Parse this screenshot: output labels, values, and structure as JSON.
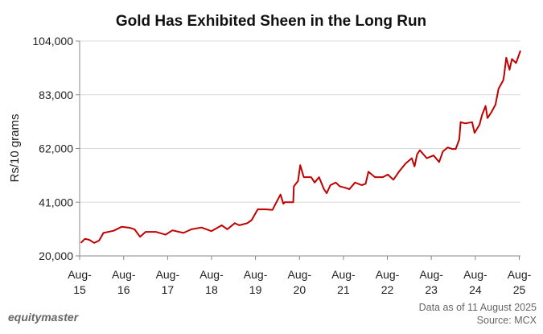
{
  "chart_data": {
    "type": "line",
    "title": "Gold Has Exhibited Sheen in the Long Run",
    "xlabel": "",
    "ylabel": "Rs/10 grams",
    "ylim": [
      20000,
      104000
    ],
    "xlim": [
      "2015-08-01",
      "2025-08-11"
    ],
    "grid": "horizontal",
    "line_color": "#c00000",
    "yticks": [
      20000,
      41000,
      62000,
      83000,
      104000
    ],
    "ytick_labels": [
      "20,000",
      "41,000",
      "62,000",
      "83,000",
      "104,000"
    ],
    "xticks": [
      "2015-08-01",
      "2016-08-01",
      "2017-08-01",
      "2018-08-01",
      "2019-08-01",
      "2020-08-01",
      "2021-08-01",
      "2022-08-01",
      "2023-08-01",
      "2024-08-01",
      "2025-08-01"
    ],
    "xtick_labels": [
      [
        "Aug-",
        "15"
      ],
      [
        "Aug-",
        "16"
      ],
      [
        "Aug-",
        "17"
      ],
      [
        "Aug-",
        "18"
      ],
      [
        "Aug-",
        "19"
      ],
      [
        "Aug-",
        "20"
      ],
      [
        "Aug-",
        "21"
      ],
      [
        "Aug-",
        "22"
      ],
      [
        "Aug-",
        "23"
      ],
      [
        "Aug-",
        "24"
      ],
      [
        "Aug-",
        "25"
      ]
    ],
    "series": [
      {
        "points": [
          [
            "2015-08-11",
            25100
          ],
          [
            "2015-09-15",
            26700
          ],
          [
            "2015-10-20",
            26300
          ],
          [
            "2015-11-30",
            25100
          ],
          [
            "2016-01-10",
            26000
          ],
          [
            "2016-02-15",
            29000
          ],
          [
            "2016-05-10",
            29850
          ],
          [
            "2016-07-15",
            31400
          ],
          [
            "2016-09-20",
            31000
          ],
          [
            "2016-10-30",
            30400
          ],
          [
            "2016-12-15",
            27500
          ],
          [
            "2017-01-30",
            29400
          ],
          [
            "2017-04-25",
            29400
          ],
          [
            "2017-07-15",
            28300
          ],
          [
            "2017-09-10",
            30000
          ],
          [
            "2017-12-10",
            29000
          ],
          [
            "2018-02-15",
            30400
          ],
          [
            "2018-05-10",
            31100
          ],
          [
            "2018-07-30",
            29700
          ],
          [
            "2018-10-25",
            32000
          ],
          [
            "2018-12-10",
            30400
          ],
          [
            "2019-02-10",
            32800
          ],
          [
            "2019-03-20",
            32000
          ],
          [
            "2019-05-25",
            32800
          ],
          [
            "2019-06-30",
            34000
          ],
          [
            "2019-08-20",
            38200
          ],
          [
            "2019-10-25",
            38200
          ],
          [
            "2019-12-20",
            38000
          ],
          [
            "2020-01-15",
            40400
          ],
          [
            "2020-02-25",
            44000
          ],
          [
            "2020-03-20",
            40400
          ],
          [
            "2020-03-30",
            41000
          ],
          [
            "2020-06-10",
            41000
          ],
          [
            "2020-06-15",
            47200
          ],
          [
            "2020-07-20",
            49300
          ],
          [
            "2020-08-07",
            55500
          ],
          [
            "2020-09-05",
            50800
          ],
          [
            "2020-11-05",
            50800
          ],
          [
            "2020-12-05",
            48700
          ],
          [
            "2021-01-10",
            50800
          ],
          [
            "2021-02-20",
            46100
          ],
          [
            "2021-03-15",
            44500
          ],
          [
            "2021-04-15",
            47700
          ],
          [
            "2021-05-30",
            48700
          ],
          [
            "2021-07-01",
            47200
          ],
          [
            "2021-08-05",
            46800
          ],
          [
            "2021-09-20",
            46100
          ],
          [
            "2021-11-05",
            48700
          ],
          [
            "2021-12-30",
            47700
          ],
          [
            "2022-02-01",
            48200
          ],
          [
            "2022-02-25",
            52900
          ],
          [
            "2022-04-20",
            50800
          ],
          [
            "2022-06-25",
            50800
          ],
          [
            "2022-08-05",
            51800
          ],
          [
            "2022-09-20",
            49800
          ],
          [
            "2022-11-05",
            52900
          ],
          [
            "2022-12-30",
            56100
          ],
          [
            "2023-02-20",
            58200
          ],
          [
            "2023-03-15",
            55000
          ],
          [
            "2023-04-05",
            59700
          ],
          [
            "2023-04-28",
            61300
          ],
          [
            "2023-06-25",
            58200
          ],
          [
            "2023-08-20",
            59300
          ],
          [
            "2023-10-05",
            56700
          ],
          [
            "2023-11-05",
            60800
          ],
          [
            "2023-12-15",
            62400
          ],
          [
            "2024-01-20",
            61800
          ],
          [
            "2024-02-20",
            61800
          ],
          [
            "2024-03-20",
            65500
          ],
          [
            "2024-04-01",
            72300
          ],
          [
            "2024-05-10",
            71800
          ],
          [
            "2024-07-05",
            72300
          ],
          [
            "2024-07-25",
            68100
          ],
          [
            "2024-09-05",
            71300
          ],
          [
            "2024-09-25",
            75000
          ],
          [
            "2024-10-25",
            78600
          ],
          [
            "2024-11-10",
            73900
          ],
          [
            "2024-12-10",
            76000
          ],
          [
            "2025-01-15",
            79100
          ],
          [
            "2025-02-10",
            85400
          ],
          [
            "2025-03-20",
            88600
          ],
          [
            "2025-03-28",
            90700
          ],
          [
            "2025-04-15",
            97500
          ],
          [
            "2025-05-12",
            92800
          ],
          [
            "2025-06-01",
            97000
          ],
          [
            "2025-07-05",
            95400
          ],
          [
            "2025-08-11",
            100300
          ]
        ]
      }
    ],
    "footer": {
      "brand": "equitymaster",
      "note": "Data as of 11 August 2025",
      "source": "Source: MCX"
    }
  }
}
